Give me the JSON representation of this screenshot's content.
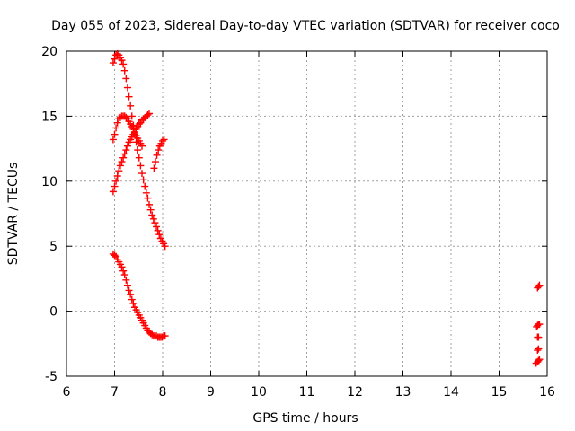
{
  "chart_data": {
    "type": "scatter",
    "title": "Day 055 of 2023, Sidereal Day-to-day VTEC variation (SDTVAR) for receiver coco",
    "xlabel": "GPS time / hours",
    "ylabel": "SDTVAR / TECUs",
    "xlim": [
      6,
      16
    ],
    "ylim": [
      -5,
      20
    ],
    "xticks": [
      "6",
      "7",
      "8",
      "9",
      "10",
      "11",
      "12",
      "13",
      "14",
      "15",
      "16"
    ],
    "yticks": [
      "-5",
      "0",
      "5",
      "10",
      "15",
      "20"
    ],
    "grid": true,
    "marker": "plus",
    "color": "#ff0000",
    "series": [
      {
        "x": [
          6.97,
          7.0,
          7.03,
          7.06,
          7.09,
          7.12,
          7.15,
          7.18,
          7.21,
          7.24,
          7.27,
          7.3,
          7.33,
          7.36,
          7.39,
          7.42,
          7.45,
          7.48,
          7.51,
          7.54,
          7.57,
          7.6,
          7.63,
          7.66,
          7.69,
          7.72,
          7.75,
          7.78,
          7.81,
          7.84,
          7.87,
          7.9,
          7.93,
          7.96,
          7.99,
          8.02,
          8.05
        ],
        "y": [
          19.1,
          19.4,
          19.7,
          19.8,
          19.7,
          19.5,
          19.3,
          19.0,
          18.5,
          17.9,
          17.2,
          16.5,
          15.8,
          15.0,
          14.3,
          13.6,
          13.0,
          12.4,
          11.8,
          11.2,
          10.6,
          10.1,
          9.6,
          9.1,
          8.7,
          8.2,
          7.8,
          7.4,
          7.1,
          6.8,
          6.5,
          6.2,
          5.9,
          5.6,
          5.4,
          5.2,
          5.0
        ]
      },
      {
        "x": [
          6.97,
          7.0,
          7.03,
          7.06,
          7.09,
          7.12,
          7.15,
          7.18,
          7.21,
          7.24,
          7.27,
          7.3,
          7.33,
          7.36,
          7.39,
          7.42,
          7.45,
          7.48,
          7.51,
          7.54,
          7.57,
          7.6,
          7.63,
          7.66,
          7.69,
          7.72
        ],
        "y": [
          9.2,
          9.6,
          10.0,
          10.4,
          10.8,
          11.2,
          11.5,
          11.8,
          12.1,
          12.4,
          12.7,
          13.0,
          13.2,
          13.4,
          13.6,
          13.8,
          14.0,
          14.2,
          14.4,
          14.5,
          14.7,
          14.8,
          14.9,
          15.0,
          15.1,
          15.2
        ]
      },
      {
        "x": [
          6.97,
          7.0,
          7.03,
          7.06,
          7.09,
          7.12,
          7.15,
          7.18,
          7.21,
          7.24,
          7.27,
          7.3,
          7.33,
          7.36,
          7.39,
          7.42,
          7.45,
          7.48,
          7.51,
          7.54,
          7.57
        ],
        "y": [
          13.2,
          13.6,
          14.1,
          14.5,
          14.8,
          14.9,
          15.0,
          15.0,
          15.0,
          14.9,
          14.8,
          14.6,
          14.4,
          14.2,
          14.0,
          13.7,
          13.5,
          13.3,
          13.1,
          12.9,
          12.7
        ]
      },
      {
        "x": [
          7.82,
          7.85,
          7.88,
          7.91,
          7.94,
          7.97,
          8.0,
          8.03
        ],
        "y": [
          11.0,
          11.5,
          12.0,
          12.4,
          12.7,
          12.9,
          13.1,
          13.2
        ]
      },
      {
        "x": [
          6.97,
          7.0,
          7.03,
          7.06,
          7.09,
          7.12,
          7.15,
          7.18,
          7.21,
          7.24,
          7.27,
          7.3,
          7.33,
          7.36,
          7.39,
          7.42,
          7.45,
          7.48,
          7.51,
          7.54,
          7.57,
          7.6,
          7.63,
          7.66,
          7.69,
          7.72,
          7.75,
          7.78,
          7.81,
          7.84,
          7.87,
          7.9,
          7.93,
          7.96,
          7.99,
          8.02,
          8.05
        ],
        "y": [
          4.4,
          4.3,
          4.2,
          4.0,
          3.8,
          3.6,
          3.4,
          3.1,
          2.8,
          2.4,
          2.0,
          1.6,
          1.3,
          0.9,
          0.6,
          0.3,
          0.1,
          -0.1,
          -0.3,
          -0.5,
          -0.7,
          -0.9,
          -1.1,
          -1.3,
          -1.5,
          -1.6,
          -1.7,
          -1.8,
          -1.9,
          -1.9,
          -1.9,
          -2.0,
          -2.0,
          -2.0,
          -2.0,
          -1.9,
          -1.9
        ]
      },
      {
        "x": [
          15.8,
          15.82,
          15.84,
          15.78,
          15.8,
          15.82,
          15.84,
          15.8,
          15.82,
          15.8,
          15.82,
          15.77,
          15.8,
          15.82,
          15.84
        ],
        "y": [
          1.8,
          1.9,
          2.0,
          -1.2,
          -1.1,
          -1.0,
          -1.0,
          -2.0,
          -2.0,
          -3.0,
          -2.9,
          -4.0,
          -3.9,
          -3.8,
          -3.7
        ]
      }
    ]
  }
}
